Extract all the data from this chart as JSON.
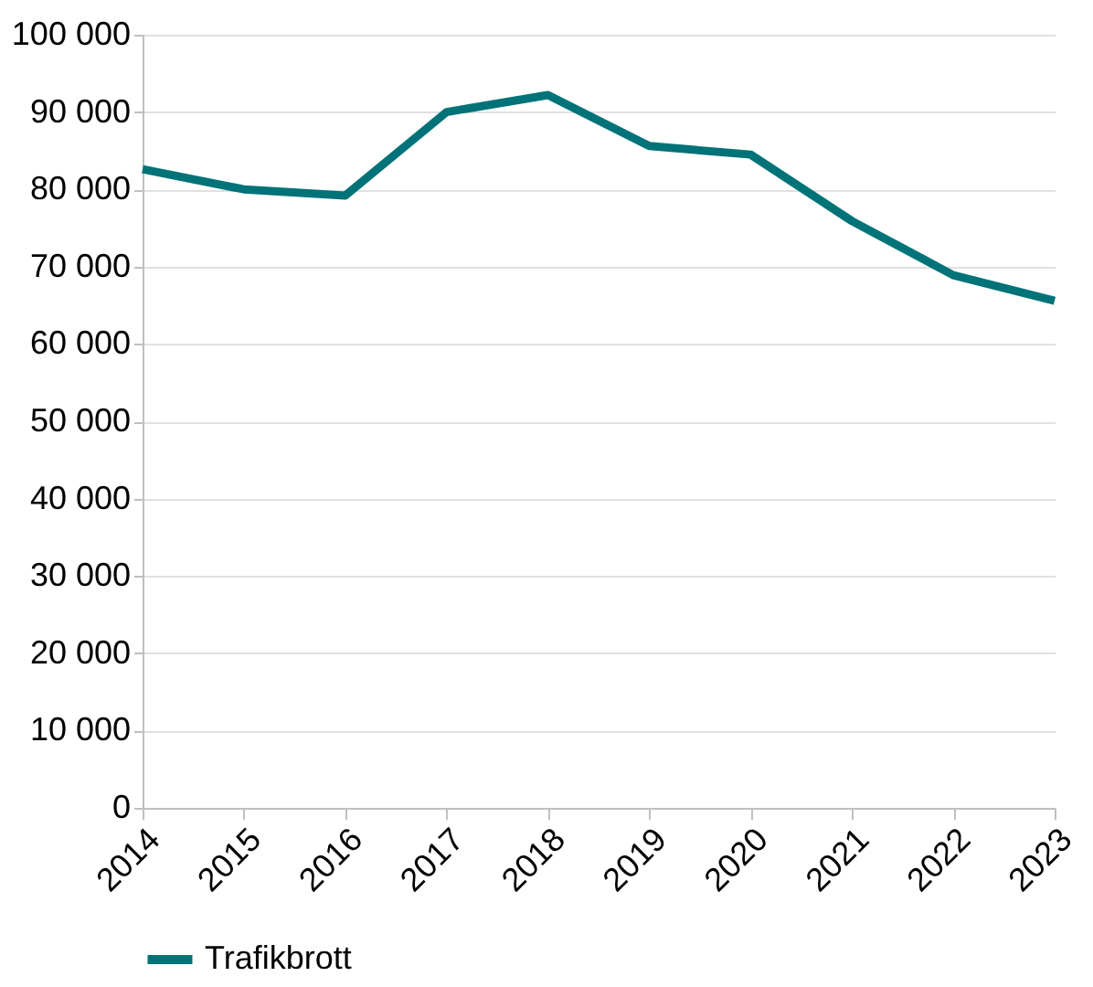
{
  "chart_data": {
    "type": "line",
    "categories": [
      "2014",
      "2015",
      "2016",
      "2017",
      "2018",
      "2019",
      "2020",
      "2021",
      "2022",
      "2023"
    ],
    "series": [
      {
        "name": "Trafikbrott",
        "color": "#007378",
        "values": [
          82600,
          80000,
          79200,
          90000,
          92200,
          85600,
          84500,
          75900,
          68900,
          65600
        ]
      }
    ],
    "ylim": [
      0,
      100000
    ],
    "yticks": [
      0,
      {
        "value": 10000,
        "label": "10 000"
      },
      {
        "value": 20000,
        "label": "20 000"
      },
      {
        "value": 30000,
        "label": "30 000"
      },
      {
        "value": 40000,
        "label": "40 000"
      },
      {
        "value": 50000,
        "label": "50 000"
      },
      {
        "value": 60000,
        "label": "60 000"
      },
      {
        "value": 70000,
        "label": "70 000"
      },
      {
        "value": 80000,
        "label": "80 000"
      },
      {
        "value": 90000,
        "label": "90 000"
      },
      {
        "value": 100000,
        "label": "100 000"
      }
    ],
    "grid": "y",
    "legend": "bottom",
    "marker": "none",
    "line_style": "solid"
  }
}
